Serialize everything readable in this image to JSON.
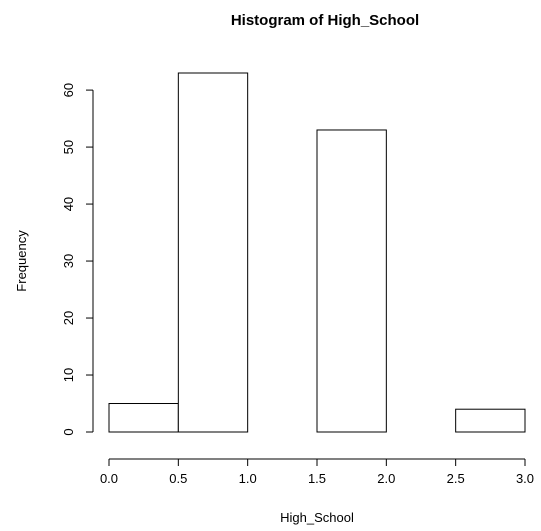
{
  "chart_data": {
    "type": "bar",
    "subtype": "histogram",
    "title": "Histogram of High_School",
    "xlabel": "High_School",
    "ylabel": "Frequency",
    "bins": [
      {
        "x0": 0.0,
        "x1": 0.5,
        "value": 5
      },
      {
        "x0": 0.5,
        "x1": 1.0,
        "value": 63
      },
      {
        "x0": 1.0,
        "x1": 1.5,
        "value": 0
      },
      {
        "x0": 1.5,
        "x1": 2.0,
        "value": 53
      },
      {
        "x0": 2.0,
        "x1": 2.5,
        "value": 0
      },
      {
        "x0": 2.5,
        "x1": 3.0,
        "value": 4
      }
    ],
    "xlim": [
      0,
      3
    ],
    "ylim": [
      0,
      63
    ],
    "x_ticks": [
      "0.0",
      "0.5",
      "1.0",
      "1.5",
      "2.0",
      "2.5",
      "3.0"
    ],
    "y_ticks": [
      "0",
      "10",
      "20",
      "30",
      "40",
      "50",
      "60"
    ],
    "grid": false,
    "legend": "none",
    "bar_fill": "#ffffff",
    "bar_stroke": "#000000"
  }
}
